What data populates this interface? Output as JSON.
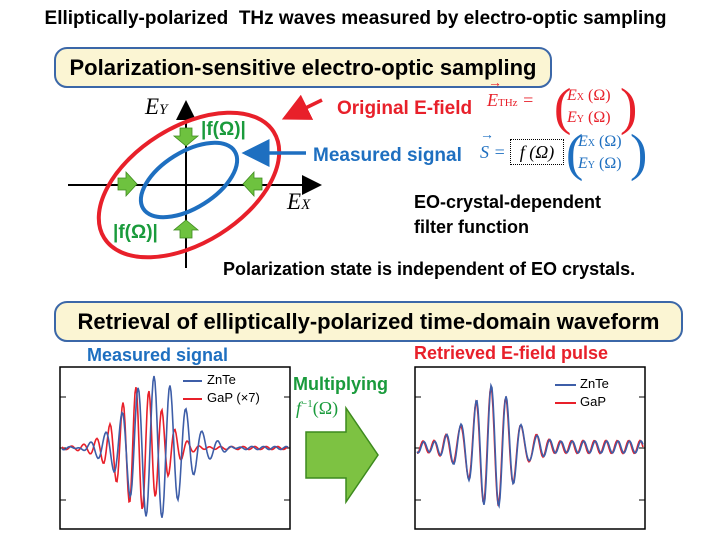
{
  "title": "Elliptically-polarized  THz waves measured by electro-optic sampling",
  "section1": "Polarization-sensitive electro-optic sampling",
  "section2": "Retrieval of elliptically-polarized time-domain waveform",
  "diagram": {
    "axis_y": "E",
    "axis_y_sub": "Y",
    "axis_x": "E",
    "axis_x_sub": "X",
    "f_label_top": "|f(Ω)|",
    "f_label_bottom": "|f(Ω)|",
    "original_label": "Original E-field",
    "measured_label": "Measured signal",
    "eq1_lhs": "E",
    "eq1_sub": "THz",
    "eq1_top": "E",
    "eq1_top_sub": "X",
    "eq1_bot": "E",
    "eq1_bot_sub": "Y",
    "eq_omega": "(Ω)",
    "eq2_lhs": "S",
    "eq2_f": "f (Ω)",
    "filter_line1": "EO-crystal-dependent",
    "filter_line2": "filter function",
    "statement": "Polarization state is independent of EO crystals.",
    "colors": {
      "original": "#e8202a",
      "measured": "#1e6fc0",
      "arrow": "#6ec23f",
      "box_border": "#3b67a8",
      "box_fill": "#fbf5d3"
    }
  },
  "bottom": {
    "measured_title": "Measured signal",
    "retrieved_title": "Retrieved E-field pulse",
    "multiplying": "Multiplying",
    "finv": "f",
    "finv_exp": "−1",
    "finv_arg": "(Ω)",
    "left_legend": [
      "ZnTe",
      "GaP (×7)"
    ],
    "right_legend": [
      "ZnTe",
      "GaP"
    ]
  }
}
